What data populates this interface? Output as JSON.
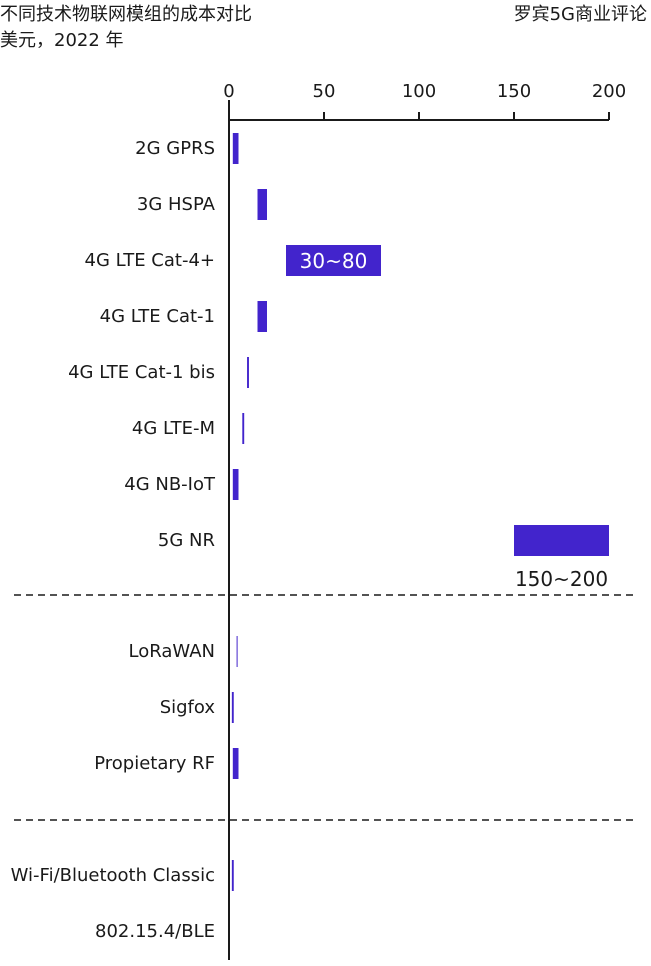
{
  "title": "不同技术物联网模组的成本对比",
  "subtitle": "美元，2022 年",
  "source": "罗宾5G商业评论",
  "chart_data": {
    "type": "bar",
    "orientation": "horizontal-floating-range",
    "title": "不同技术物联网模组的成本对比",
    "unit": "美元，2022 年",
    "xlim": [
      0,
      200
    ],
    "xticks": [
      0,
      50,
      100,
      150,
      200
    ],
    "bar_color": "#4224CC",
    "groups": [
      {
        "categories": [
          "2G GPRS",
          "3G HSPA",
          "4G LTE Cat-4+",
          "4G LTE Cat-1",
          "4G LTE Cat-1 bis",
          "4G LTE-M",
          "4G NB-IoT",
          "5G NR"
        ],
        "ranges": [
          [
            2,
            5
          ],
          [
            15,
            20
          ],
          [
            30,
            80
          ],
          [
            15,
            20
          ],
          [
            9.5,
            10.5
          ],
          [
            7,
            8
          ],
          [
            2,
            5
          ],
          [
            150,
            200
          ]
        ],
        "labels": [
          "",
          "",
          "30~80",
          "",
          "",
          "",
          "",
          "150~200"
        ]
      },
      {
        "categories": [
          "LoRaWAN",
          "Sigfox",
          "Propietary RF"
        ],
        "ranges": [
          [
            4,
            4.5
          ],
          [
            1.5,
            2.5
          ],
          [
            2,
            5
          ]
        ],
        "labels": [
          "",
          "",
          ""
        ]
      },
      {
        "categories": [
          "Wi-Fi/Bluetooth Classic",
          "802.15.4/BLE"
        ],
        "ranges": [
          [
            1.5,
            2.5
          ],
          null
        ],
        "labels": [
          "",
          ""
        ]
      }
    ]
  }
}
